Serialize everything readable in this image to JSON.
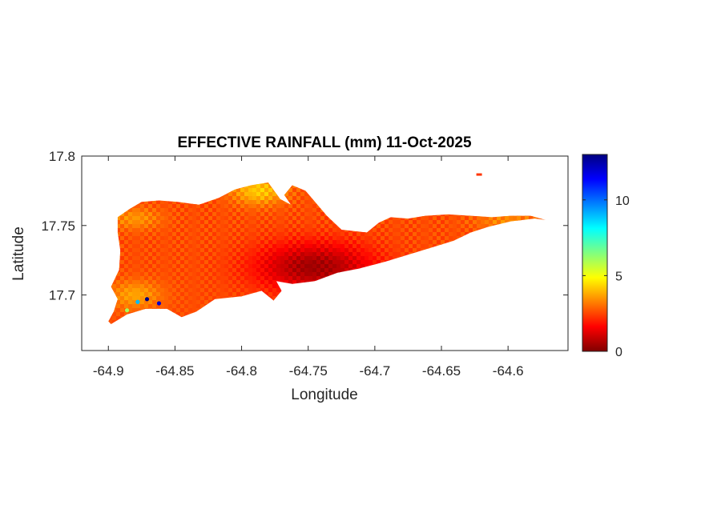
{
  "chart_data": {
    "type": "heatmap",
    "title": "EFFECTIVE RAINFALL (mm) 11-Oct-2025",
    "xlabel": "Longitude",
    "ylabel": "Latitude",
    "xlim": [
      -64.92,
      -64.555
    ],
    "ylim": [
      17.66,
      17.8
    ],
    "x_ticks": [
      -64.9,
      -64.85,
      -64.8,
      -64.75,
      -64.7,
      -64.65,
      -64.6
    ],
    "x_tick_labels": [
      "-64.9",
      "-64.85",
      "-64.8",
      "-64.75",
      "-64.7",
      "-64.65",
      "-64.6"
    ],
    "y_ticks": [
      17.7,
      17.75,
      17.8
    ],
    "y_tick_labels": [
      "17.7",
      "17.75",
      "17.8"
    ],
    "colorbar": {
      "colormap": "jet-reversed",
      "range": [
        0,
        13
      ],
      "ticks": [
        0,
        5,
        10
      ],
      "tick_labels": [
        "0",
        "5",
        "10"
      ],
      "colors": [
        "#800000",
        "#ff0000",
        "#ff8000",
        "#ffff00",
        "#80ff80",
        "#00ffff",
        "#0080ff",
        "#0000ff",
        "#000080"
      ]
    },
    "grid": false,
    "field_summary": {
      "min_approx": 0.3,
      "typical_range": [
        1,
        3
      ],
      "max_approx": 13,
      "low_area_center": [
        -64.745,
        17.72
      ],
      "high_spot_center": [
        -64.87,
        17.695
      ]
    },
    "region_outline_lonlat": [
      [
        -64.898,
        17.679
      ],
      [
        -64.886,
        17.686
      ],
      [
        -64.872,
        17.69
      ],
      [
        -64.856,
        17.69
      ],
      [
        -64.845,
        17.684
      ],
      [
        -64.834,
        17.688
      ],
      [
        -64.82,
        17.697
      ],
      [
        -64.8,
        17.699
      ],
      [
        -64.785,
        17.703
      ],
      [
        -64.776,
        17.696
      ],
      [
        -64.77,
        17.703
      ],
      [
        -64.774,
        17.71
      ],
      [
        -64.762,
        17.708
      ],
      [
        -64.745,
        17.71
      ],
      [
        -64.728,
        17.716
      ],
      [
        -64.712,
        17.719
      ],
      [
        -64.692,
        17.724
      ],
      [
        -64.675,
        17.729
      ],
      [
        -64.658,
        17.734
      ],
      [
        -64.641,
        17.739
      ],
      [
        -64.628,
        17.745
      ],
      [
        -64.615,
        17.749
      ],
      [
        -64.598,
        17.753
      ],
      [
        -64.58,
        17.755
      ],
      [
        -64.572,
        17.754
      ],
      [
        -64.583,
        17.757
      ],
      [
        -64.598,
        17.757
      ],
      [
        -64.612,
        17.756
      ],
      [
        -64.628,
        17.757
      ],
      [
        -64.645,
        17.758
      ],
      [
        -64.662,
        17.757
      ],
      [
        -64.675,
        17.755
      ],
      [
        -64.688,
        17.756
      ],
      [
        -64.697,
        17.752
      ],
      [
        -64.706,
        17.745
      ],
      [
        -64.725,
        17.747
      ],
      [
        -64.736,
        17.757
      ],
      [
        -64.744,
        17.766
      ],
      [
        -64.752,
        17.775
      ],
      [
        -64.762,
        17.779
      ],
      [
        -64.768,
        17.772
      ],
      [
        -64.763,
        17.765
      ],
      [
        -64.771,
        17.769
      ],
      [
        -64.78,
        17.781
      ],
      [
        -64.793,
        17.779
      ],
      [
        -64.805,
        17.776
      ],
      [
        -64.817,
        17.77
      ],
      [
        -64.832,
        17.765
      ],
      [
        -64.848,
        17.767
      ],
      [
        -64.862,
        17.768
      ],
      [
        -64.875,
        17.767
      ],
      [
        -64.884,
        17.762
      ],
      [
        -64.893,
        17.756
      ],
      [
        -64.893,
        17.745
      ],
      [
        -64.891,
        17.732
      ],
      [
        -64.892,
        17.718
      ],
      [
        -64.898,
        17.706
      ],
      [
        -64.893,
        17.697
      ],
      [
        -64.896,
        17.688
      ],
      [
        -64.9,
        17.681
      ]
    ],
    "islet_lonlat": [
      -64.622,
      17.787
    ]
  }
}
